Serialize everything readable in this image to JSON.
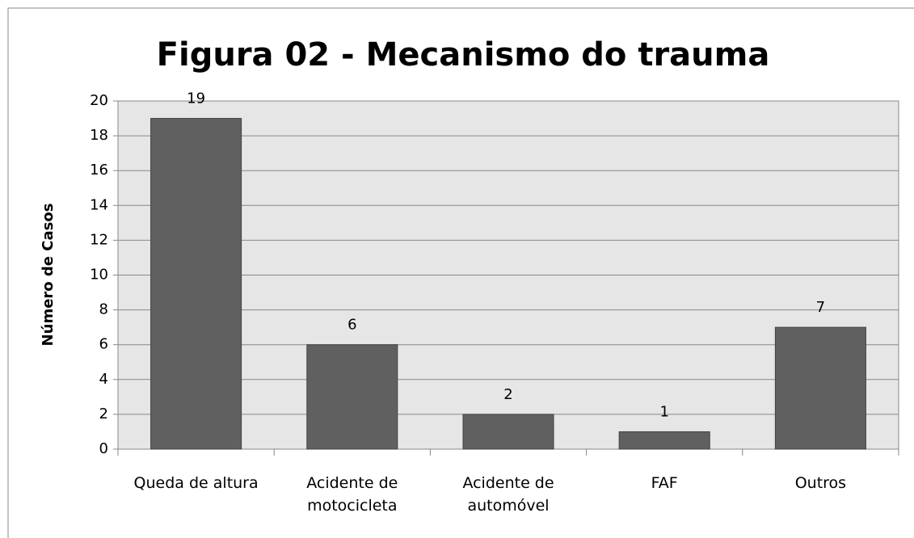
{
  "chart_data": {
    "type": "bar",
    "title": "Figura 02 - Mecanismo do trauma",
    "y_label": "Número de Casos",
    "categories": [
      "Queda de altura",
      "Acidente de motocicleta",
      "Acidente de automóvel",
      "FAF",
      "Outros"
    ],
    "values": [
      19,
      6,
      2,
      1,
      7
    ],
    "color": "#606060",
    "ylim": [
      0,
      20
    ],
    "yticks": [
      0,
      2,
      4,
      6,
      8,
      10,
      12,
      14,
      16,
      18,
      20
    ],
    "grid": true
  }
}
